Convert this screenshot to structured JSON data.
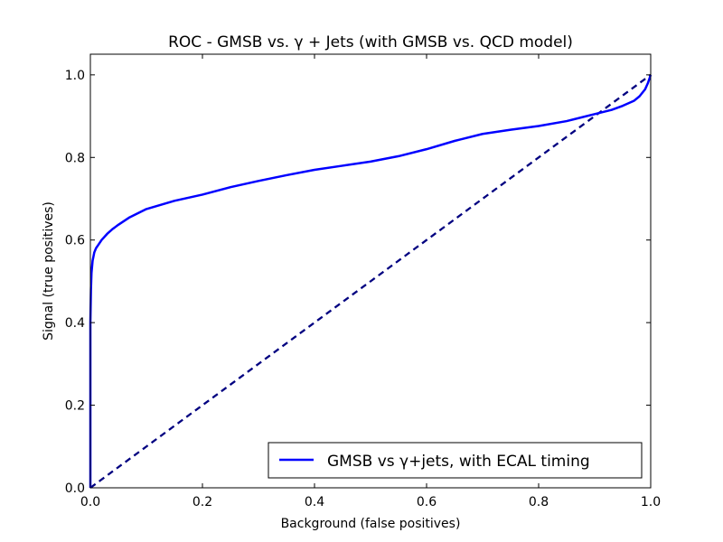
{
  "chart_data": {
    "type": "line",
    "title": "ROC - GMSB vs. γ + Jets (with GMSB vs. QCD model)",
    "xlabel": "Background (false positives)",
    "ylabel": "Signal (true positives)",
    "xlim": [
      0.0,
      1.0
    ],
    "ylim": [
      0.0,
      1.05
    ],
    "x_ticks": [
      {
        "value": 0.0,
        "label": "0.0"
      },
      {
        "value": 0.2,
        "label": "0.2"
      },
      {
        "value": 0.4,
        "label": "0.4"
      },
      {
        "value": 0.6,
        "label": "0.6"
      },
      {
        "value": 0.8,
        "label": "0.8"
      },
      {
        "value": 1.0,
        "label": "1.0"
      }
    ],
    "y_ticks": [
      {
        "value": 0.0,
        "label": "0.0"
      },
      {
        "value": 0.2,
        "label": "0.2"
      },
      {
        "value": 0.4,
        "label": "0.4"
      },
      {
        "value": 0.6,
        "label": "0.6"
      },
      {
        "value": 0.8,
        "label": "0.8"
      },
      {
        "value": 1.0,
        "label": "1.0"
      }
    ],
    "grid": false,
    "legend_position": "lower-right",
    "series": [
      {
        "name": "GMSB vs γ+jets, with ECAL timing",
        "color": "#0000ff",
        "style": "solid",
        "x": [
          0.0,
          0.0,
          0.001,
          0.002,
          0.004,
          0.007,
          0.01,
          0.015,
          0.02,
          0.03,
          0.04,
          0.05,
          0.07,
          0.1,
          0.15,
          0.2,
          0.25,
          0.3,
          0.35,
          0.4,
          0.45,
          0.5,
          0.55,
          0.6,
          0.65,
          0.7,
          0.75,
          0.8,
          0.85,
          0.9,
          0.93,
          0.95,
          0.97,
          0.98,
          0.99,
          0.995,
          1.0
        ],
        "y": [
          0.0,
          0.4,
          0.48,
          0.52,
          0.55,
          0.57,
          0.58,
          0.59,
          0.6,
          0.615,
          0.627,
          0.637,
          0.655,
          0.675,
          0.695,
          0.71,
          0.728,
          0.743,
          0.757,
          0.77,
          0.78,
          0.79,
          0.803,
          0.82,
          0.84,
          0.857,
          0.867,
          0.876,
          0.888,
          0.905,
          0.915,
          0.925,
          0.937,
          0.948,
          0.965,
          0.98,
          1.0
        ]
      },
      {
        "name": "",
        "color": "#000080",
        "style": "dashed",
        "x": [
          0.0,
          1.0
        ],
        "y": [
          0.0,
          1.0
        ]
      }
    ]
  }
}
